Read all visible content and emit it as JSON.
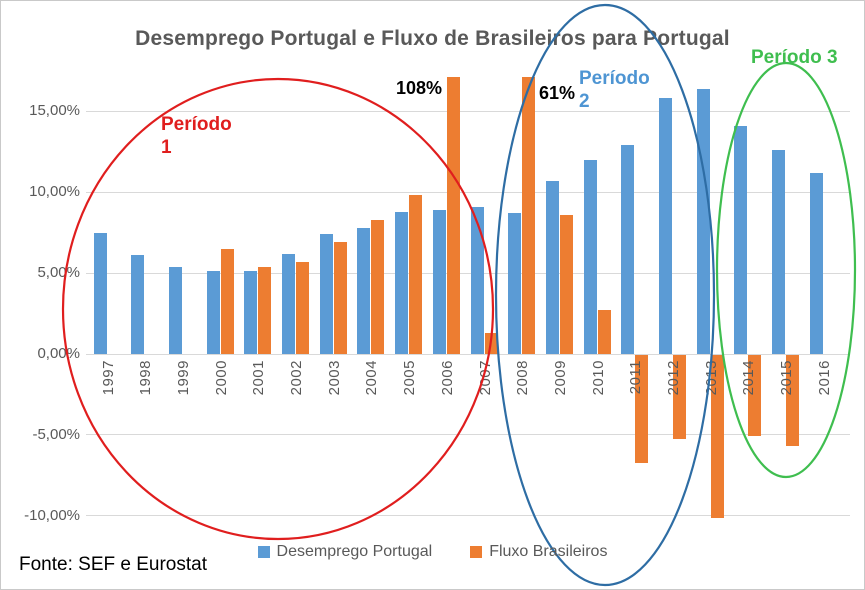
{
  "title": "Desemprego Portugal e Fluxo de Brasileiros para Portugal",
  "footer": {
    "source": "Fonte: SEF e Eurostat"
  },
  "legend": [
    {
      "label": "Desemprego Portugal",
      "color": "#5B9BD5"
    },
    {
      "label": "Fluxo Brasileiros",
      "color": "#ED7D31"
    }
  ],
  "annotations": {
    "bar_2006": {
      "label": "108%",
      "value_pct": 108
    },
    "bar_2008": {
      "label": "61%",
      "value_pct": 61
    },
    "periodo1": {
      "text": "Período\n1",
      "color": "#E01E1E"
    },
    "periodo2": {
      "text": "Período\n2",
      "color": "#4E95D3",
      "ellipse_color": "#2E6DA4"
    },
    "periodo3": {
      "text": "Período 3",
      "color": "#3FBE4F"
    }
  },
  "chart_data": {
    "type": "bar",
    "title": "Desemprego Portugal e Fluxo de Brasileiros para Portugal",
    "categories": [
      "1997",
      "1998",
      "1999",
      "2000",
      "2001",
      "2002",
      "2003",
      "2004",
      "2005",
      "2006",
      "2007",
      "2008",
      "2009",
      "2010",
      "2011",
      "2012",
      "2013",
      "2014",
      "2015",
      "2016"
    ],
    "series": [
      {
        "name": "Desemprego Portugal",
        "color": "#5B9BD5",
        "values": [
          7.5,
          6.1,
          5.4,
          5.1,
          5.1,
          6.2,
          7.4,
          7.8,
          8.8,
          8.9,
          9.1,
          8.7,
          10.7,
          12.0,
          12.9,
          15.8,
          16.4,
          14.1,
          12.6,
          11.2
        ]
      },
      {
        "name": "Fluxo Brasileiros",
        "color": "#ED7D31",
        "values": [
          null,
          null,
          null,
          6.5,
          5.4,
          5.7,
          6.9,
          8.3,
          9.8,
          108,
          1.3,
          61,
          8.6,
          2.7,
          -6.7,
          -5.2,
          -10.1,
          -5.0,
          -5.6,
          null
        ]
      }
    ],
    "bar_labels": {
      "2006": "108%",
      "2008": "61%"
    },
    "clip_max_pct": 17.1,
    "yticks": [
      {
        "label": "15,00%",
        "value": 15
      },
      {
        "label": "10,00%",
        "value": 10
      },
      {
        "label": "5,00%",
        "value": 5
      },
      {
        "label": "0,00%",
        "value": 0
      },
      {
        "label": "-5,00%",
        "value": -5
      },
      {
        "label": "-10,00%",
        "value": -10
      }
    ],
    "ylim": [
      -11.7,
      17.8
    ],
    "xlabel": "",
    "ylabel": "",
    "grid": true,
    "legend_position": "bottom",
    "source": "Fonte: SEF e Eurostat"
  }
}
